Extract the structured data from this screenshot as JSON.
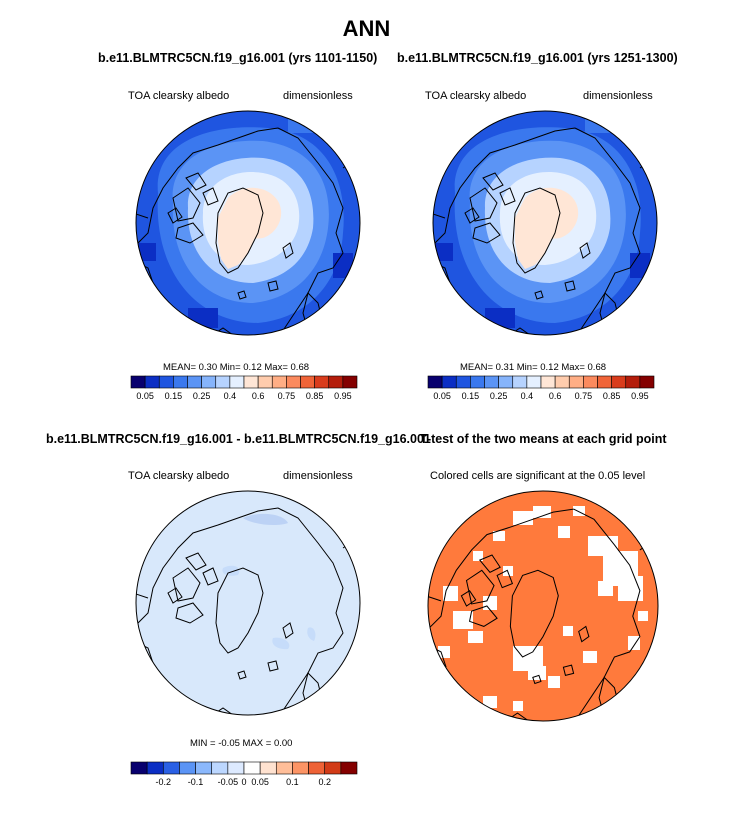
{
  "figure": {
    "title": "ANN"
  },
  "panels": [
    {
      "title": "b.e11.BLMTRC5CN.f19_g16.001 (yrs 1101-1150)",
      "left_label": "TOA clearsky albedo",
      "right_label": "dimensionless",
      "stats": "MEAN=  0.30  Min=  0.12  Max=  0.68",
      "colorbar_ticks": [
        "0.05",
        "0.15",
        "0.25",
        "0.4",
        "0.6",
        "0.75",
        "0.85",
        "0.95"
      ]
    },
    {
      "title": "b.e11.BLMTRC5CN.f19_g16.001 (yrs 1251-1300)",
      "left_label": "TOA clearsky albedo",
      "right_label": "dimensionless",
      "stats": "MEAN=  0.31  Min=  0.12  Max=  0.68",
      "colorbar_ticks": [
        "0.05",
        "0.15",
        "0.25",
        "0.4",
        "0.6",
        "0.75",
        "0.85",
        "0.95"
      ]
    },
    {
      "title": "b.e11.BLMTRC5CN.f19_g16.001 - b.e11.BLMTRC5CN.f19_g16.001",
      "left_label": "TOA clearsky albedo",
      "right_label": "dimensionless",
      "stats": "MIN = -0.05 MAX =  0.00",
      "colorbar_ticks": [
        "-0.2",
        "-0.1",
        "-0.05",
        "0",
        "0.05",
        "0.1",
        "0.2"
      ]
    },
    {
      "title": "T-test of the two means at each grid point",
      "left_label": "Colored cells are significant at the 0.05 level"
    }
  ],
  "colors": {
    "full_scale": [
      "#08006e",
      "#0b2ec4",
      "#1f55e0",
      "#3a78ee",
      "#5b94f5",
      "#86b4fb",
      "#b6d3ff",
      "#e5f0ff",
      "#ffe6d6",
      "#ffccad",
      "#ffae85",
      "#fb8a5e",
      "#f06438",
      "#d93c1c",
      "#b41d0b",
      "#840000"
    ],
    "diff_scale": [
      "#08006e",
      "#0b2ec4",
      "#2a60e4",
      "#5b94f5",
      "#8bb8fc",
      "#bcd7ff",
      "#ddeaff",
      "#ffffff",
      "#ffe2d0",
      "#ffbe99",
      "#fc9465",
      "#ee6236",
      "#d23b17",
      "#840000"
    ],
    "significant": "#ff7a3c",
    "difference_background": "#d8e8fb"
  }
}
